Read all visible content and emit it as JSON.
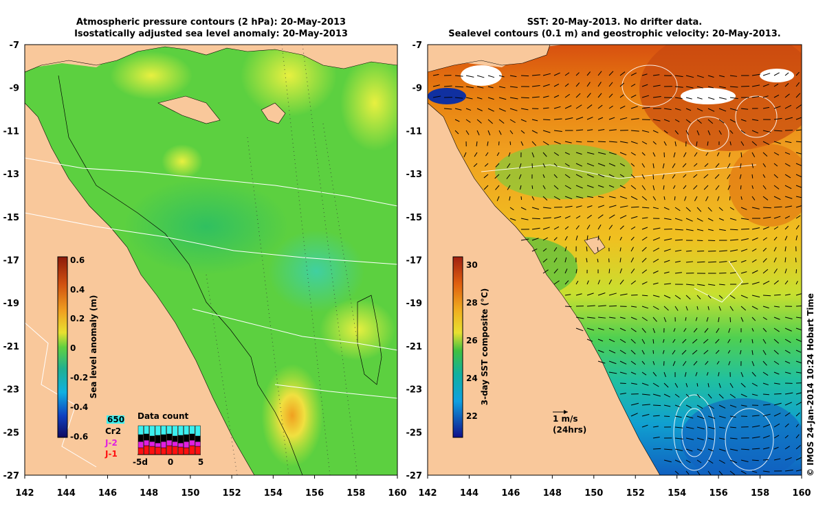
{
  "left_panel": {
    "title_line1": "Atmospheric pressure contours (2 hPa): 20-May-2013",
    "title_line2": "Isostatically adjusted sea level anomaly: 20-May-2013",
    "colorbar_label": "Sea level anomaly (m)",
    "colorbar_ticks": [
      "0.6",
      "0.4",
      "0.2",
      "0",
      "-0.2",
      "-0.4",
      "-0.6"
    ],
    "colorbar_range": [
      -0.6,
      0.6
    ],
    "data_count": {
      "title": "Data count",
      "series_labels": [
        {
          "label": "650",
          "color": "#3cf0f0"
        },
        {
          "label": "Cr2",
          "color": "#000000"
        },
        {
          "label": "J-2",
          "color": "#e020e0"
        },
        {
          "label": "J-1",
          "color": "#ff1010"
        }
      ],
      "x_ticks": [
        "-5d",
        "0",
        "5"
      ]
    }
  },
  "right_panel": {
    "title_line1": "SST: 20-May-2013. No drifter data.",
    "title_line2": "Sealevel contours (0.1 m) and geostrophic velocity: 20-May-2013.",
    "colorbar_label": "3-day SST composite (°C)",
    "colorbar_ticks": [
      "30",
      "28",
      "26",
      "24",
      "22"
    ],
    "colorbar_range": [
      21,
      30.5
    ],
    "scale_arrow": {
      "line1": "1 m/s",
      "line2": "(24hrs)"
    }
  },
  "axes": {
    "x_ticks": [
      "142",
      "144",
      "146",
      "148",
      "150",
      "152",
      "154",
      "156",
      "158",
      "160"
    ],
    "y_ticks": [
      "-7",
      "-9",
      "-11",
      "-13",
      "-15",
      "-17",
      "-19",
      "-21",
      "-23",
      "-25",
      "-27"
    ],
    "lon_range": [
      142,
      160
    ],
    "lat_range": [
      -27,
      -7
    ]
  },
  "colors": {
    "land": "#f9c89b",
    "sla_base": "#5cd040",
    "sst_warm": "#f0a020"
  },
  "copyright": "© IMOS 24-Jan-2014 10:24 Hobart Time"
}
